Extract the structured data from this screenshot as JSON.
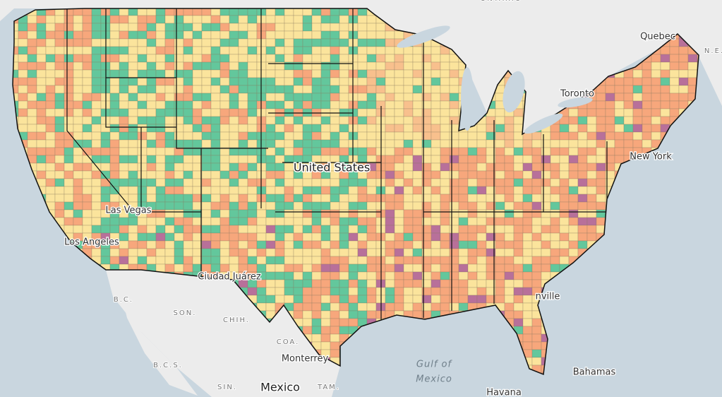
{
  "labels": [
    {
      "text": "ONTARIO",
      "kind": "region"
    },
    {
      "text": "Quebec",
      "kind": "city"
    },
    {
      "text": "N.E.",
      "kind": "region"
    },
    {
      "text": "Toronto",
      "kind": "city"
    },
    {
      "text": "New York",
      "kind": "city"
    },
    {
      "text": "Las Vegas",
      "kind": "city"
    },
    {
      "text": "Los Angeles",
      "kind": "city"
    },
    {
      "text": "Ciudad Juárez",
      "kind": "city"
    },
    {
      "text": "B.C.",
      "kind": "region"
    },
    {
      "text": "SON.",
      "kind": "region"
    },
    {
      "text": "CHIH.",
      "kind": "region"
    },
    {
      "text": "COA.",
      "kind": "region"
    },
    {
      "text": "B.C.S.",
      "kind": "region"
    },
    {
      "text": "SIN.",
      "kind": "region"
    },
    {
      "text": "TAM.",
      "kind": "region"
    },
    {
      "text": "Monterrey",
      "kind": "city"
    },
    {
      "text": "Mexico",
      "kind": "country"
    },
    {
      "text": "Gulf of",
      "kind": "water"
    },
    {
      "text": "Mexico",
      "kind": "water"
    },
    {
      "text": "Bahamas",
      "kind": "city"
    },
    {
      "text": "Havana",
      "kind": "city"
    },
    {
      "text": "nville",
      "kind": "city"
    },
    {
      "text": "United States",
      "kind": "country"
    }
  ]
}
